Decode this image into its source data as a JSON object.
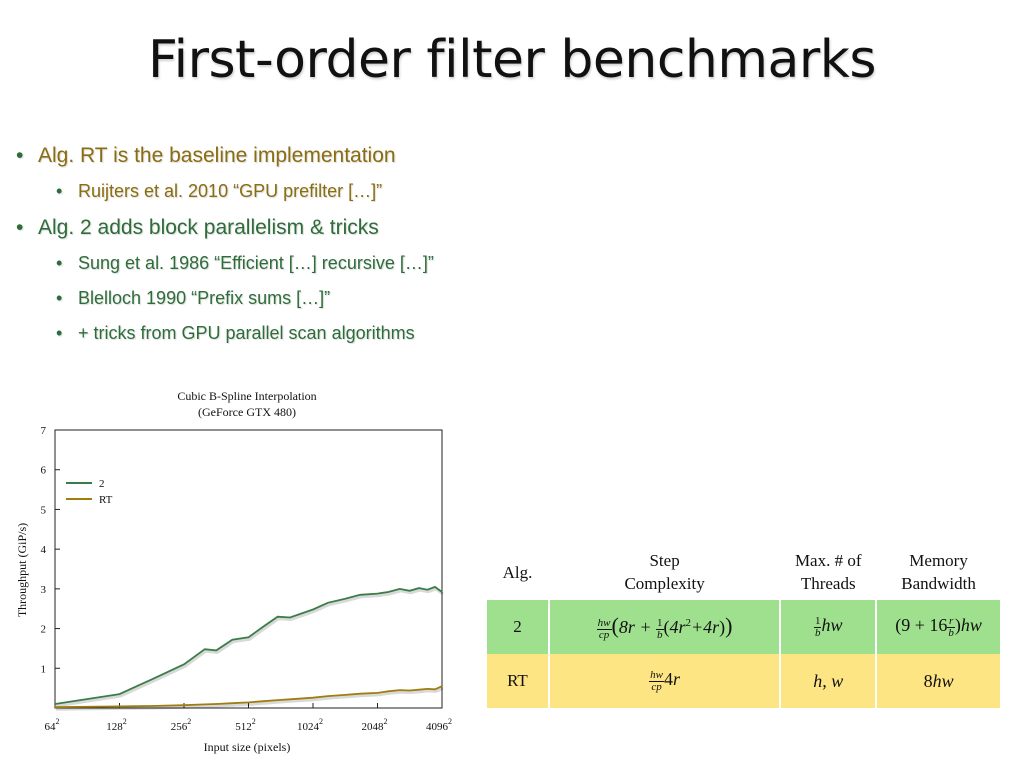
{
  "slide": {
    "title": "First-order filter benchmarks"
  },
  "bullets": {
    "b1_text": "Alg. RT is the baseline implementation",
    "b1_sub_author": "Ruijters et al. 2010",
    "b1_sub_rest": " “GPU prefilter […]”",
    "b2_text": "Alg. 2 adds block parallelism & tricks",
    "b2_sub1": "Sung et al. 1986 “Efficient […] recursive […]”",
    "b2_sub2_author": "Blelloch",
    "b2_sub2_rest": " 1990 “Prefix sums […]”",
    "b2_sub3": "+ tricks from GPU parallel scan algorithms"
  },
  "chart_data": {
    "type": "line",
    "title": "Cubic B-Spline Interpolation",
    "subtitle": "(GeForce GTX 480)",
    "xlabel": "Input size (pixels)",
    "ylabel": "Throughput (GiP/s)",
    "x_scale": "log2",
    "x_ticks": [
      "64",
      "128",
      "256",
      "512",
      "1024",
      "2048",
      "4096"
    ],
    "x_tick_superscript": "2",
    "ylim": [
      0,
      7
    ],
    "y_ticks": [
      1,
      2,
      3,
      4,
      5,
      6,
      7
    ],
    "legend_position": "upper-left",
    "x": [
      64,
      128,
      181,
      256,
      320,
      362,
      430,
      512,
      600,
      700,
      800,
      1024,
      1200,
      1448,
      1700,
      2048,
      2300,
      2600,
      2896,
      3200,
      3500,
      3800,
      4096
    ],
    "series": [
      {
        "name": "2",
        "color": "#3a7d48",
        "values": [
          0.1,
          0.35,
          0.72,
          1.1,
          1.48,
          1.45,
          1.72,
          1.78,
          2.05,
          2.3,
          2.28,
          2.48,
          2.65,
          2.75,
          2.85,
          2.88,
          2.92,
          3.0,
          2.95,
          3.02,
          2.98,
          3.05,
          2.92
        ]
      },
      {
        "name": "RT",
        "color": "#a07d10",
        "values": [
          0.02,
          0.04,
          0.05,
          0.07,
          0.09,
          0.1,
          0.12,
          0.14,
          0.17,
          0.2,
          0.22,
          0.26,
          0.3,
          0.33,
          0.36,
          0.38,
          0.42,
          0.45,
          0.44,
          0.46,
          0.48,
          0.47,
          0.55
        ]
      }
    ]
  },
  "table": {
    "headers": [
      "Alg.",
      "Step",
      "Complexity",
      "Max. # of",
      "Threads",
      "Memory",
      "Bandwidth"
    ],
    "rows": [
      {
        "alg": "2",
        "color": "#9fe08e"
      },
      {
        "alg": "RT",
        "color": "#fde583"
      }
    ]
  }
}
